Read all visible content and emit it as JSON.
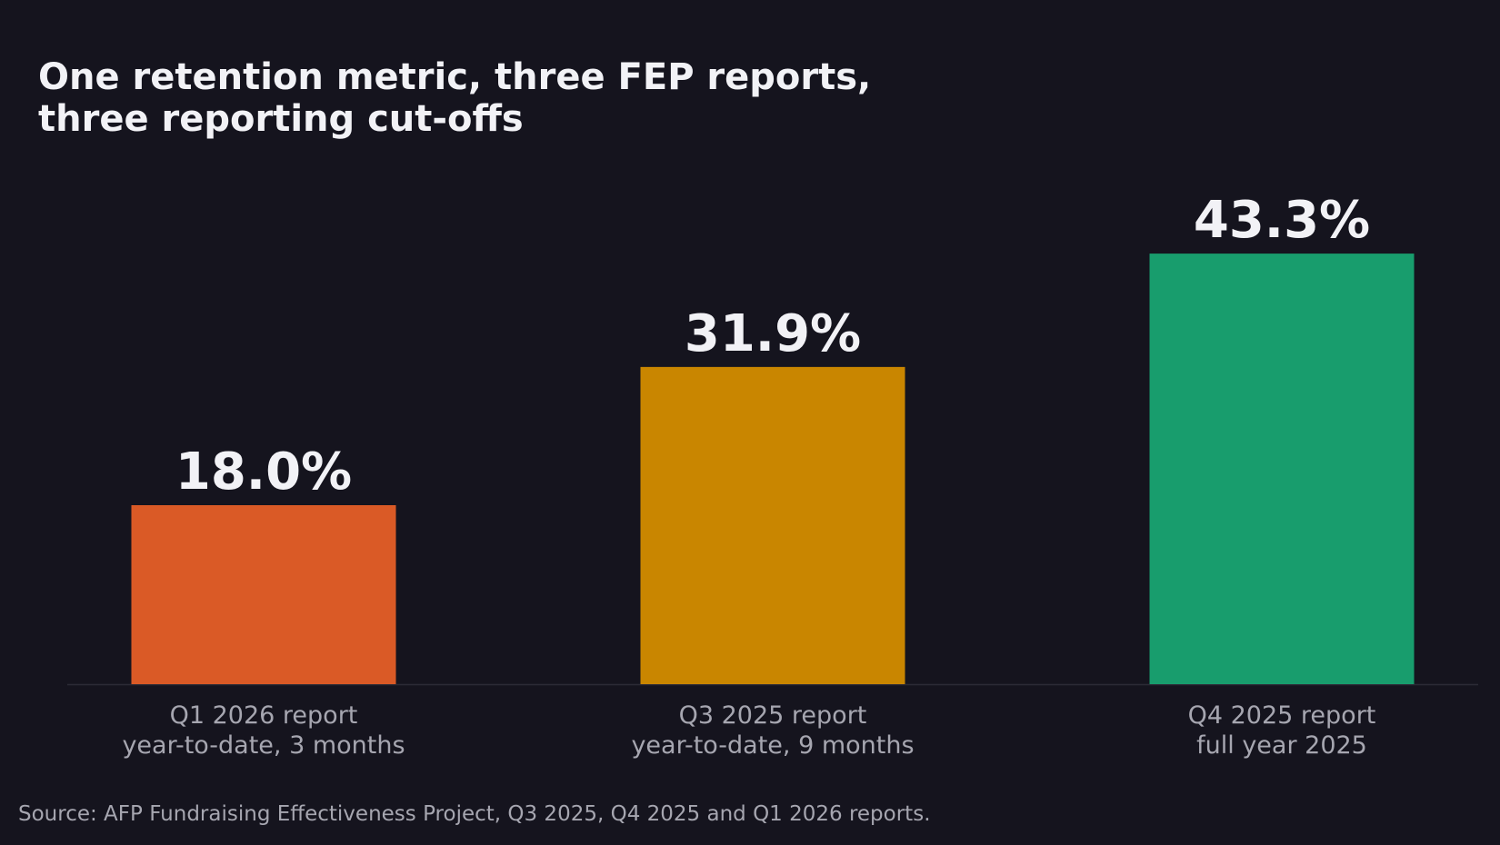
{
  "title": "One retention metric, three FEP reports,\nthree reporting cut-offs",
  "chart_data": {
    "type": "bar",
    "categories": [
      [
        "Q1 2026 report",
        "year-to-date, 3 months"
      ],
      [
        "Q3 2025 report",
        "year-to-date, 9 months"
      ],
      [
        "Q4 2025 report",
        "full year 2025"
      ]
    ],
    "values": [
      18.0,
      31.9,
      43.3
    ],
    "value_labels": [
      "18.0%",
      "31.9%",
      "43.3%"
    ],
    "colors": [
      "#da5a26",
      "#c98600",
      "#189d6d"
    ],
    "ylim": [
      0,
      45
    ],
    "grid": false,
    "legend": "none"
  },
  "source": "Source: AFP Fundraising Effectiveness Project, Q3 2025, Q4 2025 and Q1 2026 reports."
}
